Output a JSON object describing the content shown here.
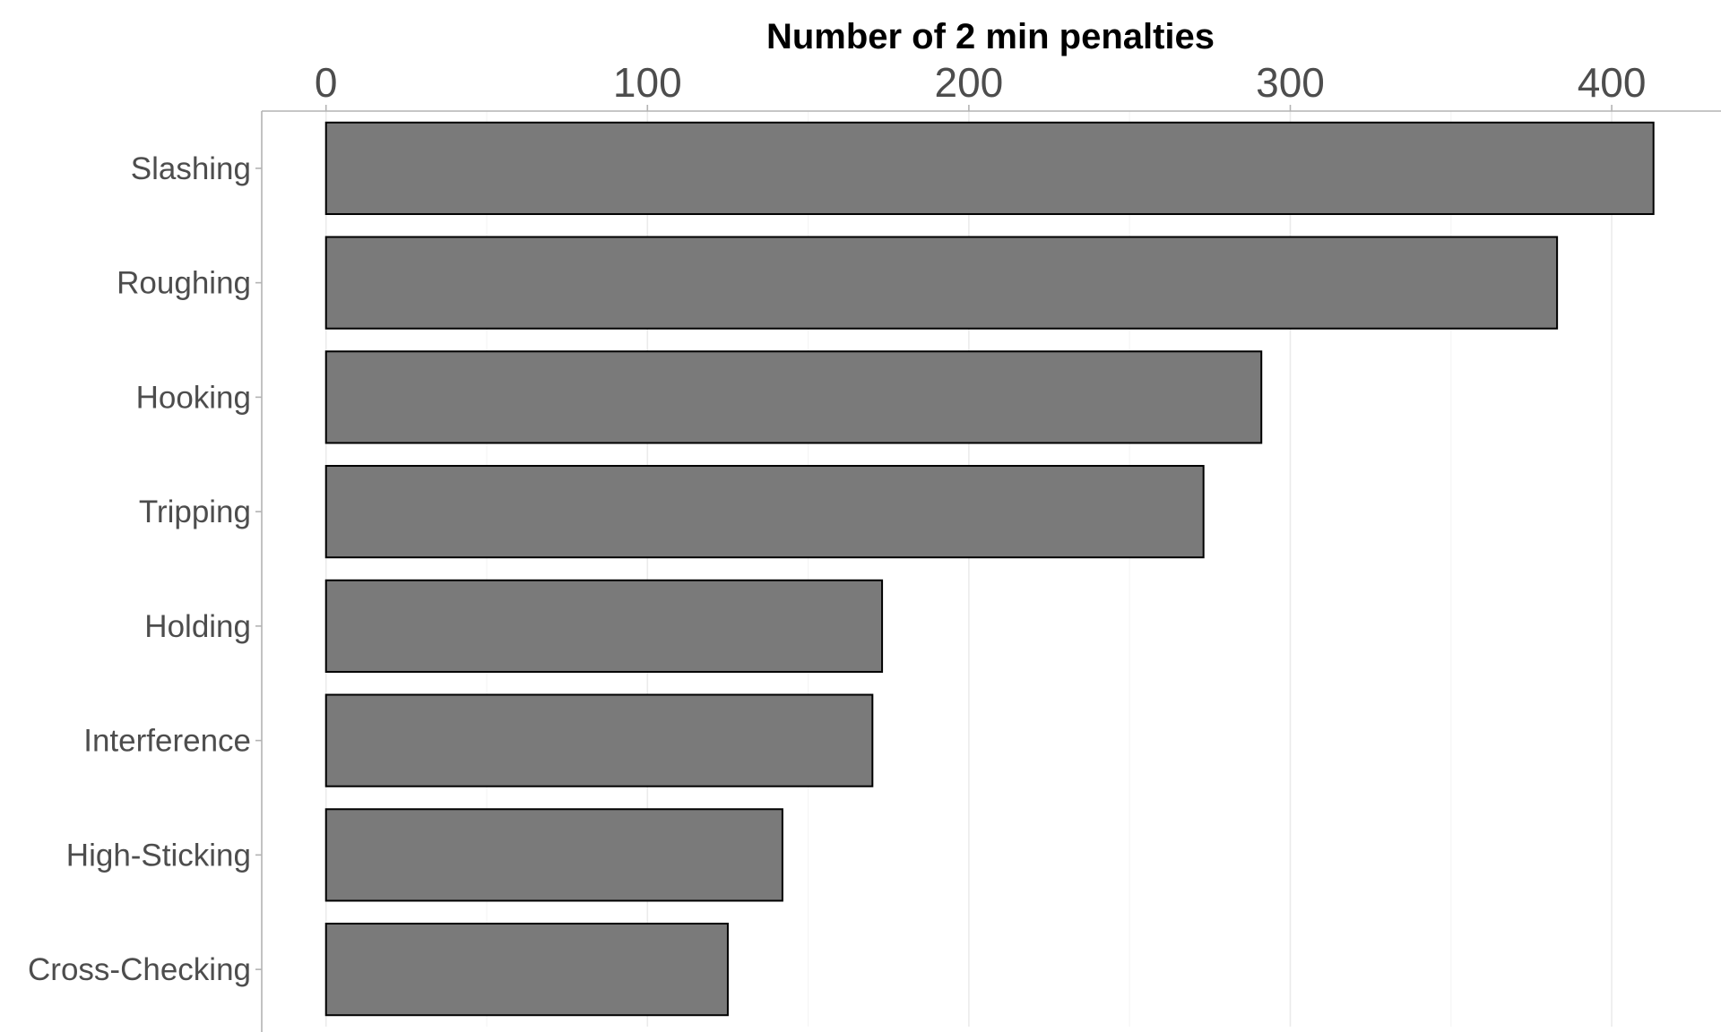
{
  "chart_data": {
    "type": "bar",
    "orientation": "horizontal",
    "title": "",
    "xlabel": "Number of 2 min penalties",
    "xlabel_position": "top",
    "ylabel": "",
    "categories": [
      "Slashing",
      "Roughing",
      "Hooking",
      "Tripping",
      "Holding",
      "Interference",
      "High-Sticking",
      "Cross-Checking"
    ],
    "values": [
      413,
      383,
      291,
      273,
      173,
      170,
      142,
      125
    ],
    "xlim": [
      -20,
      434
    ],
    "xticks": [
      0,
      100,
      200,
      300,
      400
    ],
    "xtick_labels": [
      "0",
      "100",
      "200",
      "300",
      "400"
    ],
    "grid": true,
    "legend": "none",
    "colors": {
      "bar_fill": "#7a7a7a",
      "bar_stroke": "#000000",
      "grid_major": "#ebebeb",
      "grid_minor": "#f5f5f5",
      "axis_line": "#b3b3b3",
      "tick_text": "#4d4d4d",
      "title_text": "#000000"
    }
  }
}
